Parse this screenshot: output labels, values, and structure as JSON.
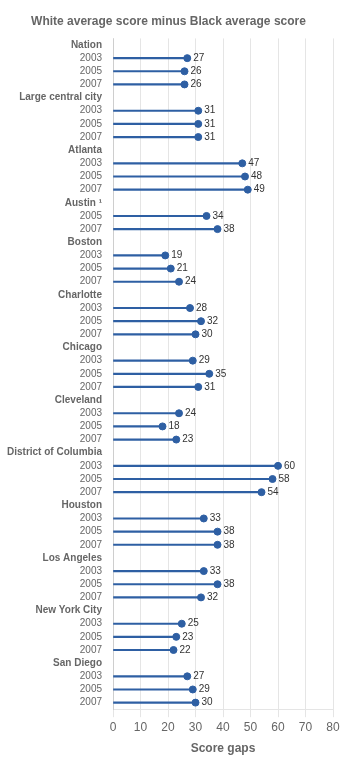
{
  "chart_data": {
    "type": "lollipop",
    "title": "White average score minus Black average score",
    "xlabel": "Score gaps",
    "orientation": "horizontal",
    "xlim": [
      0,
      80
    ],
    "xticks": [
      0,
      10,
      20,
      30,
      40,
      50,
      60,
      70,
      80
    ],
    "grid": true,
    "data_labels": true,
    "color": "#2e5fa3",
    "categories": [
      "Nation",
      "2003",
      "2005",
      "2007",
      "Large central city",
      "2003",
      "2005",
      "2007",
      "Atlanta",
      "2003",
      "2005",
      "2007",
      "Austin ¹",
      "2005",
      "2007",
      "Boston",
      "2003",
      "2005",
      "2007",
      "Charlotte",
      "2003",
      "2005",
      "2007",
      "Chicago",
      "2003",
      "2005",
      "2007",
      "Cleveland",
      "2003",
      "2005",
      "2007",
      "District of Columbia",
      "2003",
      "2005",
      "2007",
      "Houston",
      "2003",
      "2005",
      "2007",
      "Los Angeles",
      "2003",
      "2005",
      "2007",
      "New York City",
      "2003",
      "2005",
      "2007",
      "San Diego",
      "2003",
      "2005",
      "2007"
    ],
    "values": [
      null,
      27,
      26,
      26,
      null,
      31,
      31,
      31,
      null,
      47,
      48,
      49,
      null,
      34,
      38,
      null,
      19,
      21,
      24,
      null,
      28,
      32,
      30,
      null,
      29,
      35,
      31,
      null,
      24,
      18,
      23,
      null,
      60,
      58,
      54,
      null,
      33,
      38,
      38,
      null,
      33,
      38,
      32,
      null,
      25,
      23,
      22,
      null,
      27,
      29,
      30
    ]
  }
}
